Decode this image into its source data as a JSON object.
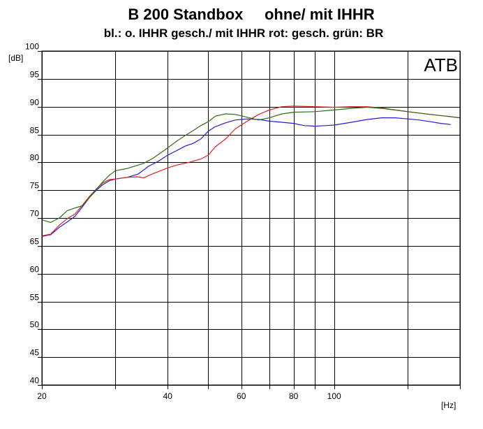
{
  "chart_data": {
    "type": "line",
    "title": "B 200 Standbox     ohne/ mit IHHR",
    "subtitle": "bl.: o. IHHR gesch./ mit IHHR rot: gesch. grün: BR",
    "badge": "ATB",
    "xlabel": "[Hz]",
    "ylabel": "[dB]",
    "x_scale": "log",
    "xlim": [
      20,
      200
    ],
    "ylim": [
      40,
      100
    ],
    "x_ticks": [
      20,
      40,
      60,
      80,
      100
    ],
    "x_gridlines": [
      20,
      30,
      40,
      50,
      60,
      70,
      80,
      90,
      100,
      150,
      200
    ],
    "y_ticks": [
      40,
      45,
      50,
      55,
      60,
      65,
      70,
      75,
      80,
      85,
      90,
      95,
      100
    ],
    "grid": true,
    "legend": "none",
    "series": [
      {
        "color": "#2020d0",
        "points": [
          [
            20,
            66.7
          ],
          [
            21,
            67.0
          ],
          [
            22,
            68.3
          ],
          [
            23,
            69.3
          ],
          [
            24,
            70.3
          ],
          [
            25,
            72.0
          ],
          [
            26,
            73.7
          ],
          [
            27,
            75.0
          ],
          [
            28,
            76.0
          ],
          [
            29,
            76.7
          ],
          [
            30,
            77.0
          ],
          [
            32,
            77.3
          ],
          [
            34,
            77.9
          ],
          [
            36,
            79.3
          ],
          [
            38,
            80.2
          ],
          [
            40,
            81.3
          ],
          [
            42,
            82.1
          ],
          [
            44,
            82.9
          ],
          [
            46,
            83.4
          ],
          [
            48,
            84.2
          ],
          [
            50,
            85.6
          ],
          [
            52,
            86.4
          ],
          [
            55,
            87.1
          ],
          [
            58,
            87.6
          ],
          [
            62,
            87.8
          ],
          [
            66,
            87.7
          ],
          [
            70,
            87.4
          ],
          [
            75,
            87.2
          ],
          [
            80,
            87.0
          ],
          [
            85,
            86.6
          ],
          [
            90,
            86.5
          ],
          [
            95,
            86.6
          ],
          [
            100,
            86.7
          ],
          [
            110,
            87.2
          ],
          [
            120,
            87.7
          ],
          [
            130,
            88.0
          ],
          [
            140,
            88.0
          ],
          [
            150,
            87.8
          ],
          [
            160,
            87.6
          ],
          [
            170,
            87.3
          ],
          [
            180,
            87.0
          ],
          [
            190,
            86.8
          ]
        ]
      },
      {
        "color": "#e02020",
        "points": [
          [
            20,
            66.8
          ],
          [
            21,
            67.1
          ],
          [
            22,
            68.7
          ],
          [
            23,
            69.9
          ],
          [
            24,
            70.7
          ],
          [
            25,
            72.3
          ],
          [
            26,
            73.9
          ],
          [
            27,
            75.2
          ],
          [
            28,
            76.3
          ],
          [
            29,
            76.9
          ],
          [
            30,
            77.0
          ],
          [
            32,
            77.3
          ],
          [
            34,
            77.4
          ],
          [
            35,
            77.2
          ],
          [
            37,
            78.0
          ],
          [
            40,
            79.0
          ],
          [
            42,
            79.5
          ],
          [
            45,
            80.0
          ],
          [
            48,
            80.6
          ],
          [
            50,
            81.3
          ],
          [
            52,
            82.8
          ],
          [
            55,
            84.2
          ],
          [
            58,
            86.0
          ],
          [
            62,
            87.4
          ],
          [
            66,
            88.6
          ],
          [
            70,
            89.4
          ],
          [
            75,
            90.0
          ],
          [
            80,
            90.1
          ],
          [
            90,
            90.0
          ],
          [
            100,
            89.9
          ],
          [
            110,
            90.0
          ],
          [
            120,
            90.0
          ],
          [
            130,
            89.8
          ],
          [
            140,
            89.4
          ],
          [
            150,
            89.1
          ],
          [
            170,
            88.6
          ],
          [
            190,
            88.2
          ],
          [
            200,
            88.0
          ]
        ]
      },
      {
        "color": "#2e6e10",
        "points": [
          [
            20,
            69.7
          ],
          [
            21,
            69.2
          ],
          [
            22,
            70.0
          ],
          [
            23,
            71.3
          ],
          [
            24,
            71.8
          ],
          [
            25,
            72.2
          ],
          [
            26,
            73.7
          ],
          [
            27,
            75.2
          ],
          [
            28,
            76.5
          ],
          [
            29,
            77.7
          ],
          [
            30,
            78.5
          ],
          [
            32,
            78.9
          ],
          [
            35,
            79.8
          ],
          [
            37,
            80.8
          ],
          [
            40,
            82.6
          ],
          [
            42,
            83.8
          ],
          [
            44,
            84.8
          ],
          [
            46,
            85.7
          ],
          [
            48,
            86.6
          ],
          [
            50,
            87.3
          ],
          [
            52,
            88.3
          ],
          [
            55,
            88.7
          ],
          [
            58,
            88.6
          ],
          [
            62,
            88.1
          ],
          [
            66,
            87.6
          ],
          [
            70,
            88.0
          ],
          [
            75,
            88.7
          ],
          [
            80,
            89.0
          ],
          [
            90,
            89.1
          ],
          [
            100,
            89.4
          ],
          [
            110,
            89.7
          ],
          [
            120,
            89.9
          ],
          [
            130,
            89.7
          ],
          [
            140,
            89.4
          ],
          [
            150,
            89.1
          ],
          [
            170,
            88.6
          ],
          [
            190,
            88.2
          ],
          [
            200,
            88.0
          ]
        ]
      }
    ]
  }
}
